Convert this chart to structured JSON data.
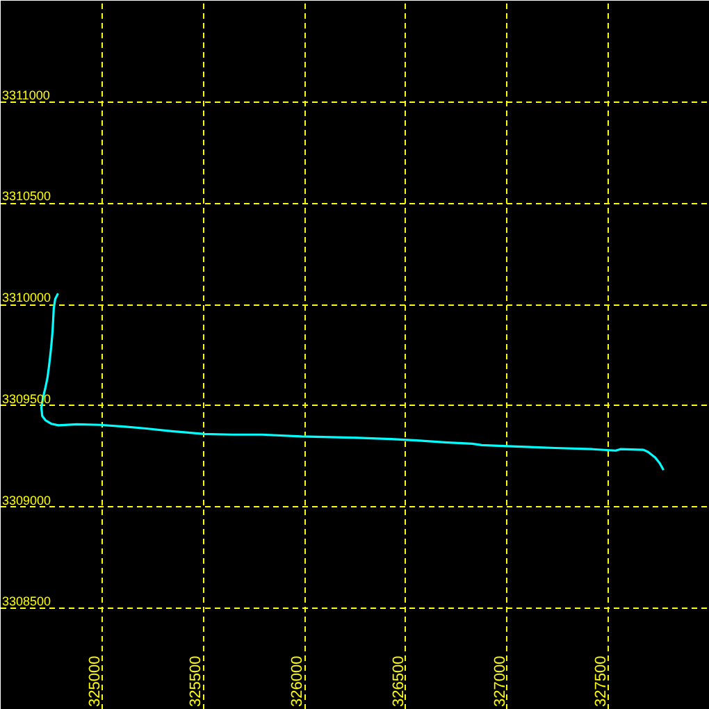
{
  "chart_data": {
    "type": "line",
    "x": [
      324783,
      324769,
      324762,
      324756,
      324749,
      324740,
      324731,
      324719,
      324708,
      324701,
      324705,
      324721,
      324751,
      324785,
      324877,
      324991,
      325116,
      325219,
      325345,
      325505,
      325642,
      325790,
      325984,
      326235,
      326429,
      326555,
      326692,
      326829,
      326875,
      327046,
      327240,
      327422,
      327536,
      327559,
      327673,
      327696,
      327731,
      327753,
      327772
    ],
    "series": [
      {
        "color": "#00ffff",
        "values": [
          3310055,
          3310027,
          3309982,
          3309868,
          3309788,
          3309708,
          3309639,
          3309582,
          3309536,
          3309491,
          3309450,
          3309429,
          3309411,
          3309404,
          3309409,
          3309406,
          3309397,
          3309388,
          3309375,
          3309361,
          3309358,
          3309358,
          3309349,
          3309343,
          3309336,
          3309329,
          3309320,
          3309313,
          3309306,
          3309299,
          3309292,
          3309286,
          3309279,
          3309286,
          3309283,
          3309272,
          3309245,
          3309217,
          3309183
        ]
      }
    ],
    "xlim": [
      324500,
      328000
    ],
    "ylim": [
      3308000,
      3311500
    ],
    "xticks": [
      325000,
      325500,
      326000,
      326500,
      327000,
      327500
    ],
    "yticks": [
      3308500,
      3309000,
      3309500,
      3310000,
      3310500,
      3311000
    ],
    "grid": true
  }
}
